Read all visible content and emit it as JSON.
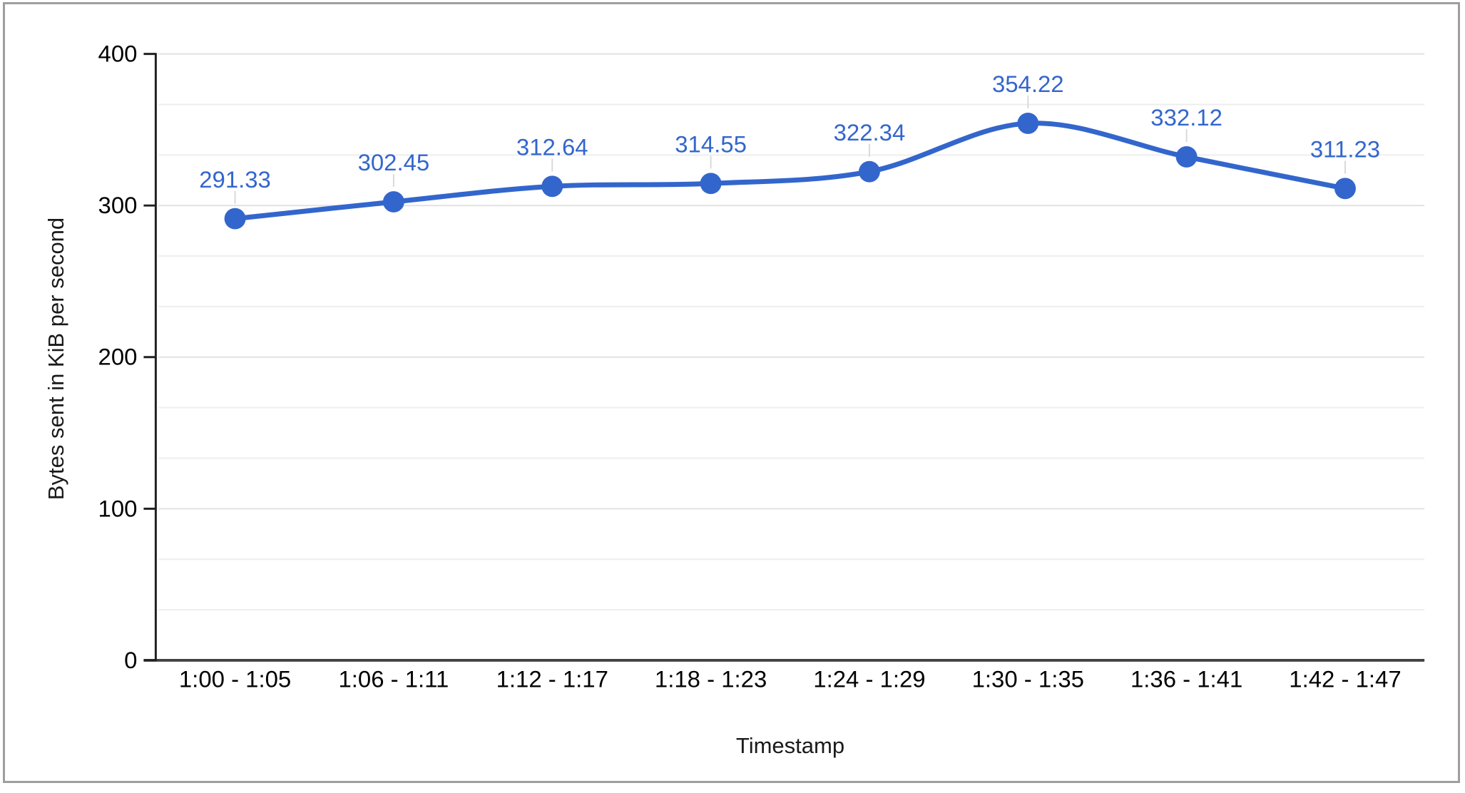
{
  "chart_data": {
    "type": "line",
    "smooth": true,
    "title": "",
    "categories": [
      "1:00 - 1:05",
      "1:06 - 1:11",
      "1:12 - 1:17",
      "1:18 - 1:23",
      "1:24 - 1:29",
      "1:30 - 1:35",
      "1:36 - 1:41",
      "1:42 - 1:47"
    ],
    "values": [
      291.33,
      302.45,
      312.64,
      314.55,
      322.34,
      354.22,
      332.12,
      311.23
    ],
    "data_labels_visible": true,
    "xlabel": "Timestamp",
    "ylabel": "Bytes sent in KiB per second",
    "ylim": [
      0,
      400
    ],
    "y_ticks": [
      0,
      100,
      200,
      300,
      400
    ],
    "minor_gridlines_per_major": 2,
    "grid": "horizontal",
    "legend": "none",
    "colors": {
      "series": "#3366cc",
      "data_label": "#3366cc",
      "axis_line": "#212121",
      "baseline": "#424242",
      "tick_label": "#000000",
      "category_label": "#000000",
      "axis_title": "#1a1a1a",
      "major_gridline": "#e2e2e2",
      "minor_gridline": "#eeeeee",
      "annotation_stem": "#dadada",
      "border": "#9e9e9e",
      "background": "#ffffff"
    }
  }
}
